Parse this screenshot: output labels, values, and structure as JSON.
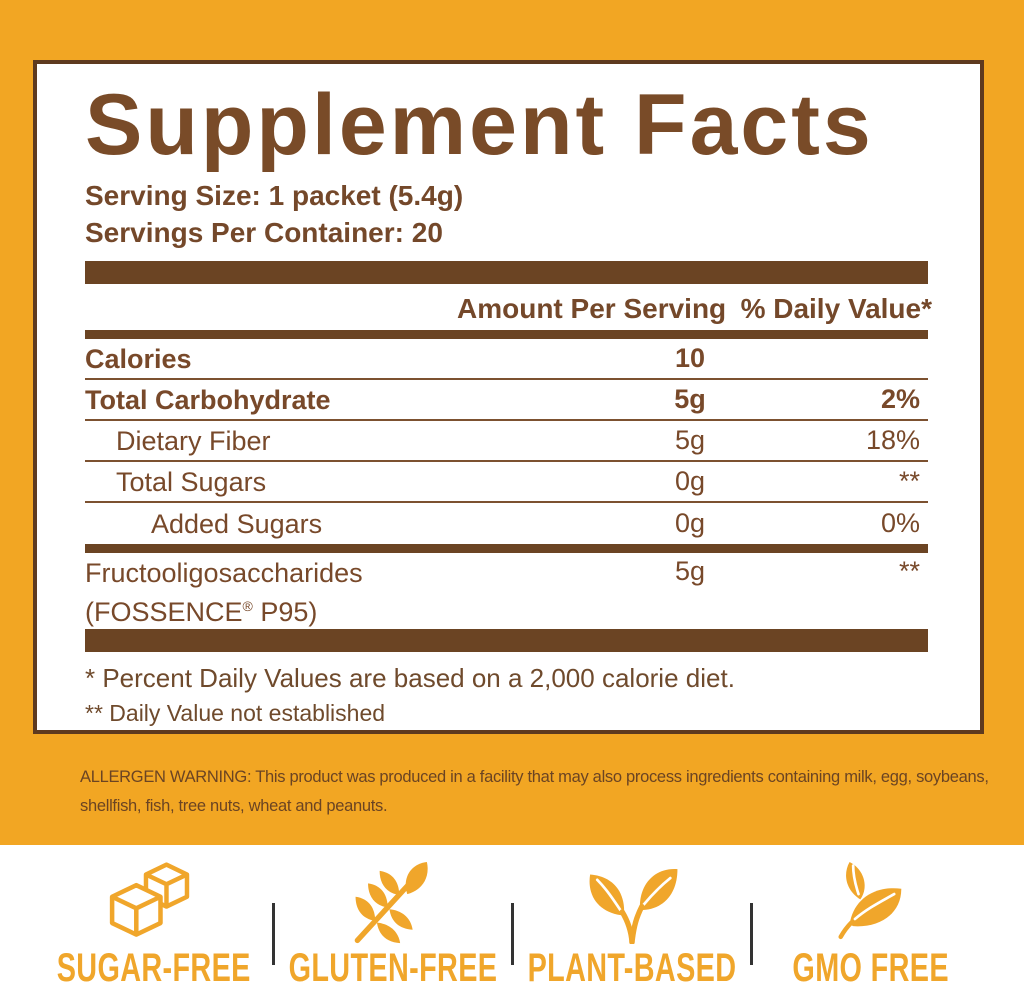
{
  "panel": {
    "title": "Supplement Facts",
    "serving_size": "Serving Size: 1 packet (5.4g)",
    "servings_per_container": "Servings Per Container: 20",
    "header": {
      "amount": "Amount Per Serving",
      "daily_value": "% Daily Value*"
    },
    "rows": [
      {
        "label": "Calories",
        "amount": "10",
        "dv": "",
        "bold": true,
        "indent": 0
      },
      {
        "label": "Total Carbohydrate",
        "amount": "5g",
        "dv": "2%",
        "bold": true,
        "indent": 0
      },
      {
        "label": "Dietary Fiber",
        "amount": "5g",
        "dv": "18%",
        "bold": false,
        "indent": 1
      },
      {
        "label": "Total Sugars",
        "amount": "0g",
        "dv": "**",
        "bold": false,
        "indent": 1
      },
      {
        "label": "Added Sugars",
        "amount": "0g",
        "dv": "0%",
        "bold": false,
        "indent": 2,
        "thick_after": true
      },
      {
        "label": "Fructooligosaccharides",
        "label2": "(FOSSENCE® P95)",
        "amount": "5g",
        "dv": "**",
        "bold": false,
        "indent": 0,
        "tall": true
      }
    ],
    "footnotes": [
      "* Percent Daily Values are based on a 2,000 calorie diet.",
      "** Daily Value not established"
    ]
  },
  "allergen": {
    "line1": "ALLERGEN WARNING: This product was produced in a facility that may also process ingredients containing milk, egg, soybeans,",
    "line2": "shellfish, fish, tree nuts, wheat and peanuts."
  },
  "badges": [
    {
      "icon": "sugar-cubes-icon",
      "label": "SUGAR-FREE"
    },
    {
      "icon": "wheat-icon",
      "label": "GLUTEN-FREE"
    },
    {
      "icon": "sprout-icon",
      "label": "PLANT-BASED"
    },
    {
      "icon": "leaves-icon",
      "label": "GMO FREE"
    }
  ],
  "colors": {
    "background_gold": "#F2A623",
    "icon_gold": "#F0A62B",
    "text_brown": "#78492A",
    "bar_brown": "#6B4423",
    "panel_border_brown": "#5E3A1F",
    "divider_black": "#333333"
  }
}
